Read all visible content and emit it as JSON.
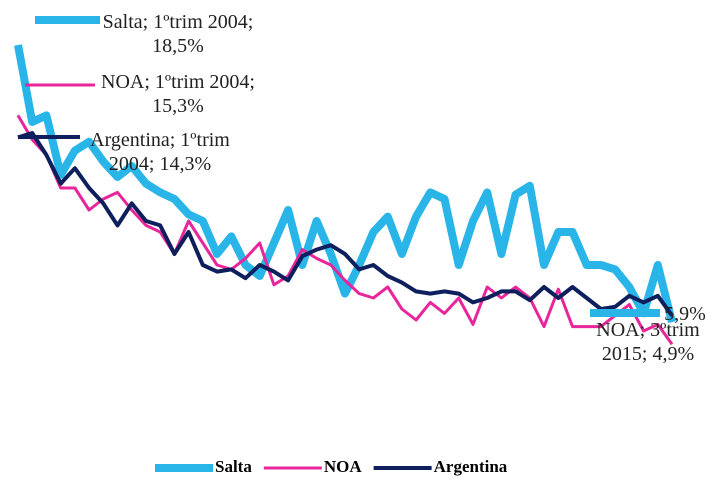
{
  "chart_data": {
    "type": "line",
    "categories": [
      null,
      null,
      null,
      null,
      null,
      null,
      null,
      null,
      null,
      null,
      null,
      null,
      null,
      null,
      null,
      null,
      null,
      null,
      null,
      null,
      null,
      null,
      null,
      null,
      null,
      null,
      null,
      null,
      null,
      null,
      null,
      null,
      null,
      null,
      null,
      null,
      null,
      null,
      null,
      null,
      null,
      null,
      null,
      null,
      null,
      null,
      null
    ],
    "ylim": [
      0,
      20
    ],
    "legend": "bottom",
    "series": [
      {
        "name": "Salta",
        "color": "#29b5e8",
        "values": [
          18.5,
          15.0,
          15.3,
          12.6,
          13.7,
          14.1,
          13.2,
          12.5,
          13.0,
          12.2,
          11.8,
          11.5,
          10.8,
          10.5,
          9.0,
          9.8,
          8.5,
          8.0,
          9.5,
          11.0,
          8.5,
          10.5,
          9.0,
          7.2,
          8.5,
          10.0,
          10.7,
          9.0,
          10.7,
          11.8,
          11.5,
          8.5,
          10.5,
          11.8,
          9.0,
          11.7,
          12.1,
          8.5,
          10.0,
          10.0,
          8.5,
          8.5,
          8.3,
          7.5,
          6.3,
          8.5,
          5.9
        ],
        "value_labels": [
          "Salta; 1ºtrim 2004; 18,5%",
          null,
          null,
          null,
          null,
          null,
          null,
          null,
          null,
          null,
          null,
          null,
          null,
          null,
          null,
          null,
          null,
          null,
          null,
          null,
          null,
          null,
          null,
          null,
          null,
          null,
          null,
          null,
          null,
          null,
          null,
          null,
          null,
          null,
          null,
          null,
          null,
          null,
          null,
          null,
          null,
          null,
          null,
          null,
          null,
          null,
          "5,9%"
        ]
      },
      {
        "name": "NOA",
        "color": "#e8259a",
        "values": [
          15.3,
          14.2,
          13.5,
          12.0,
          12.0,
          11.0,
          11.5,
          11.8,
          11.0,
          10.3,
          10.0,
          9.0,
          10.5,
          9.5,
          8.5,
          8.3,
          8.8,
          9.5,
          7.6,
          8.0,
          9.2,
          8.8,
          8.5,
          7.8,
          7.2,
          7.0,
          7.5,
          6.5,
          6.0,
          6.8,
          6.3,
          7.0,
          5.8,
          7.5,
          7.0,
          7.5,
          7.0,
          5.7,
          7.4,
          5.7,
          5.7,
          5.7,
          6.2,
          6.7,
          5.5,
          5.8,
          4.9
        ],
        "value_labels": [
          "NOA; 1ºtrim 2004; 15,3%",
          null,
          null,
          null,
          null,
          null,
          null,
          null,
          null,
          null,
          null,
          null,
          null,
          null,
          null,
          null,
          null,
          null,
          null,
          null,
          null,
          null,
          null,
          null,
          null,
          null,
          null,
          null,
          null,
          null,
          null,
          null,
          null,
          null,
          null,
          null,
          null,
          null,
          null,
          null,
          null,
          null,
          null,
          null,
          null,
          null,
          "NOA; 3ºtrim 2015; 4,9%"
        ]
      },
      {
        "name": "Argentina",
        "color": "#0d1f5c",
        "values": [
          14.3,
          14.5,
          13.5,
          12.2,
          12.9,
          12.0,
          11.3,
          10.3,
          11.3,
          10.5,
          10.3,
          9.0,
          10.0,
          8.5,
          8.2,
          8.3,
          7.9,
          8.5,
          8.2,
          7.8,
          8.9,
          9.2,
          9.4,
          9.0,
          8.3,
          8.5,
          8.0,
          7.7,
          7.3,
          7.2,
          7.3,
          7.2,
          6.8,
          7.0,
          7.3,
          7.3,
          6.9,
          7.5,
          7.0,
          7.5,
          7.0,
          6.5,
          6.6,
          7.1,
          6.8,
          7.1,
          6.2
        ],
        "value_labels": [
          "Argentina; 1ºtrim 2004; 14,3%",
          null,
          null,
          null,
          null,
          null,
          null,
          null,
          null,
          null,
          null,
          null,
          null,
          null,
          null,
          null,
          null,
          null,
          null,
          null,
          null,
          null,
          null,
          null,
          null,
          null,
          null,
          null,
          null,
          null,
          null,
          null,
          null,
          null,
          null,
          null,
          null,
          null,
          null,
          null,
          null,
          null,
          null,
          null,
          null,
          null,
          null
        ]
      }
    ]
  }
}
